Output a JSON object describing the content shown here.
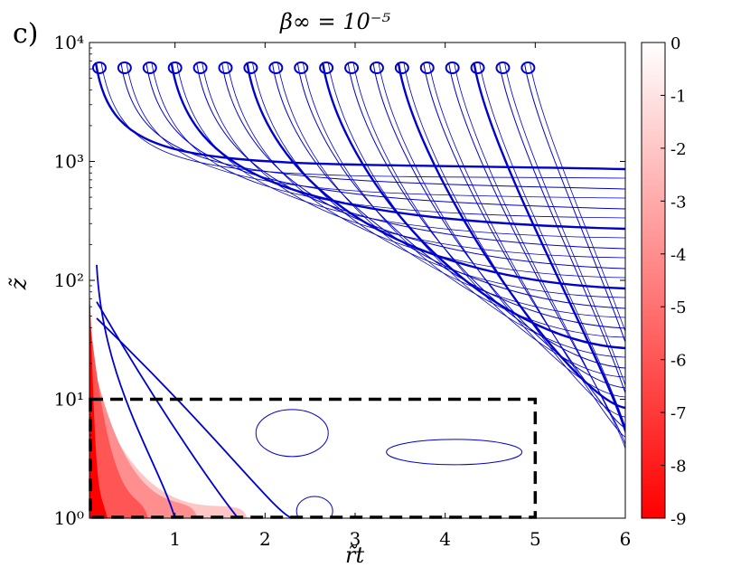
{
  "chart_data": {
    "panel_label": "c)",
    "title": "β∞ = 10⁻⁵",
    "xlabel": "r̃t",
    "ylabel": "z̃",
    "type": "heatmap",
    "x_range": [
      0.05,
      6
    ],
    "y_range": [
      1,
      10000
    ],
    "y_scale": "log",
    "x_ticks": [
      1,
      2,
      3,
      4,
      5,
      6
    ],
    "y_ticks": [
      {
        "value": 1,
        "label": "10⁰"
      },
      {
        "value": 10,
        "label": "10¹"
      },
      {
        "value": 100,
        "label": "10²"
      },
      {
        "value": 1000,
        "label": "10³"
      },
      {
        "value": 10000,
        "label": "10⁴"
      }
    ],
    "colorbar": {
      "range": [
        -9,
        0
      ],
      "ticks": [
        "0",
        "-1",
        "-2",
        "-3",
        "-4",
        "-5",
        "-6",
        "-7",
        "-8",
        "-9"
      ],
      "color_low": "#ff0000",
      "color_high": "#ffffff"
    },
    "contour_color": "#0000cc",
    "grid": false,
    "annotation_box": {
      "x": [
        0.05,
        5
      ],
      "y": [
        1,
        10
      ],
      "style": "dashed"
    },
    "heat_bands": [
      {
        "x_max": 0.25,
        "y_max": 3.0,
        "value": -9
      },
      {
        "x_max": 0.7,
        "y_max": 2.2,
        "value": -6
      },
      {
        "x_max": 1.25,
        "y_max": 1.7,
        "value": -4
      },
      {
        "x_max": 1.8,
        "y_max": 1.3,
        "value": -2
      }
    ]
  }
}
